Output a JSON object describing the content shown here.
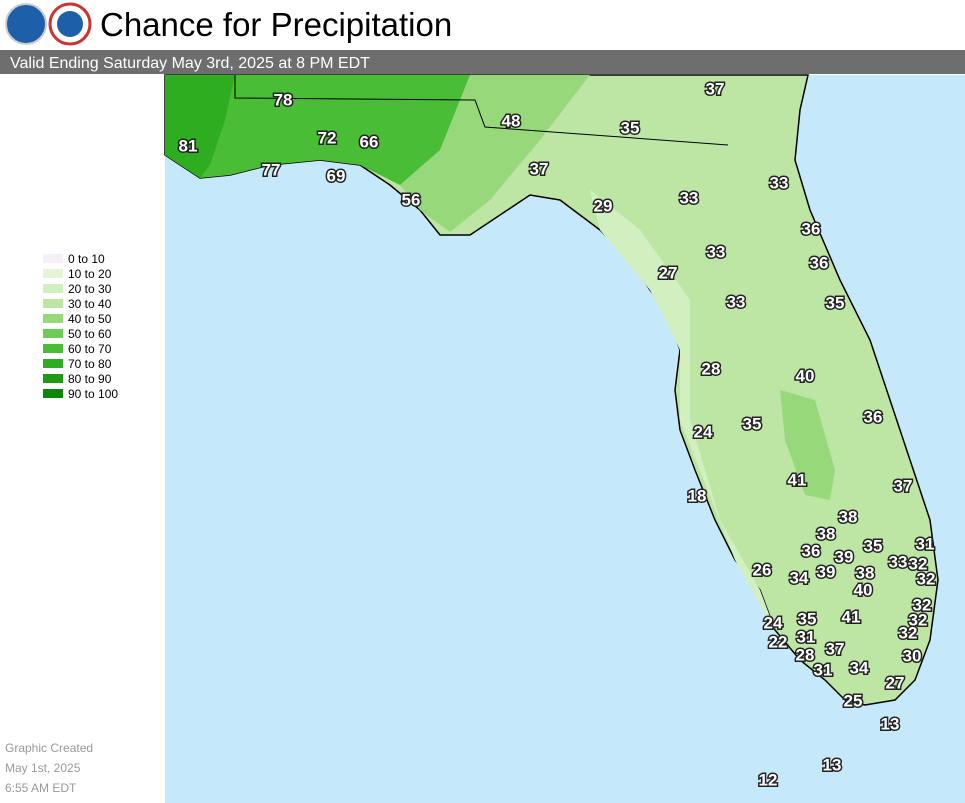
{
  "header": {
    "title": "Chance for Precipitation",
    "valid": "Valid Ending Saturday May 3rd, 2025 at 8 PM EDT"
  },
  "legend": {
    "items": [
      {
        "label": "0 to 10",
        "color": "#f5f0f8"
      },
      {
        "label": "10 to 20",
        "color": "#e6f5d8"
      },
      {
        "label": "20 to 30",
        "color": "#d2efc0"
      },
      {
        "label": "30 to 40",
        "color": "#bde6a5"
      },
      {
        "label": "40 to 50",
        "color": "#97d97a"
      },
      {
        "label": "50 to 60",
        "color": "#6ecb53"
      },
      {
        "label": "60 to 70",
        "color": "#48bd35"
      },
      {
        "label": "70 to 80",
        "color": "#2ead20"
      },
      {
        "label": "80 to 90",
        "color": "#1b9a12"
      },
      {
        "label": "90 to 100",
        "color": "#0d870a"
      }
    ]
  },
  "points": {
    "values": [
      37,
      78,
      48,
      35,
      81,
      72,
      66,
      77,
      69,
      37,
      33,
      33,
      29,
      56,
      36,
      33,
      36,
      27,
      35,
      33,
      28,
      40,
      36,
      35,
      24,
      41,
      37,
      18,
      38,
      38,
      35,
      31,
      36,
      39,
      33,
      32,
      26,
      34,
      39,
      38,
      32,
      40,
      32,
      35,
      41,
      32,
      24,
      31,
      32,
      22,
      37,
      28,
      30,
      31,
      34,
      27,
      25,
      13,
      13,
      12
    ]
  },
  "footer": {
    "lines": [
      "Graphic Created",
      "May 1st, 2025",
      "6:55 AM EDT"
    ]
  }
}
